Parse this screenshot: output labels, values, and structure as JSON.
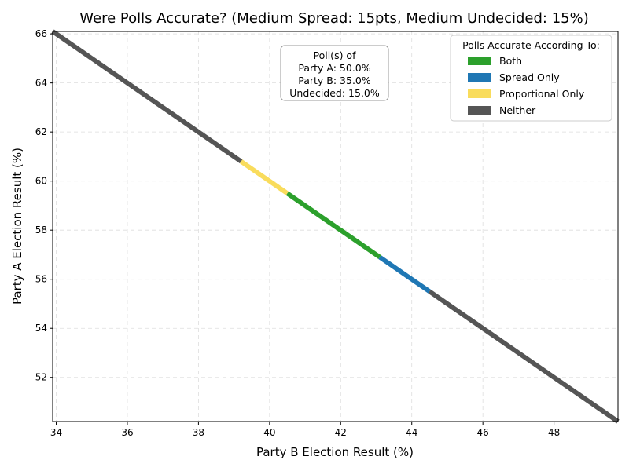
{
  "chart_data": {
    "type": "line",
    "title": "Were Polls Accurate? (Medium Spread: 15pts, Medium Undecided: 15%)",
    "xlabel": "Party B Election Result (%)",
    "ylabel": "Party A Election Result (%)",
    "xlim": [
      33.9,
      49.8
    ],
    "ylim": [
      50.2,
      66.1
    ],
    "xticks": [
      34,
      36,
      38,
      40,
      42,
      44,
      46,
      48
    ],
    "yticks": [
      52,
      54,
      56,
      58,
      60,
      62,
      64,
      66
    ],
    "grid": true,
    "legend": {
      "title": "Polls Accurate According To:",
      "placement": "top-right",
      "entries": [
        {
          "label": "Both",
          "color": "#2ca02c"
        },
        {
          "label": "Spread Only",
          "color": "#1f77b4"
        },
        {
          "label": "Proportional Only",
          "color": "#f9dc5c"
        },
        {
          "label": "Neither",
          "color": "#555555"
        }
      ]
    },
    "annotation": {
      "lines": [
        "Poll(s) of",
        "Party A: 50.0%",
        "Party B: 35.0%",
        "Undecided: 15.0%"
      ]
    },
    "series": [
      {
        "category": "Neither",
        "color": "#555555",
        "x": [
          33.9,
          39.2
        ],
        "y": [
          66.1,
          60.8
        ]
      },
      {
        "category": "Proportional Only",
        "color": "#f9dc5c",
        "x": [
          39.2,
          40.5
        ],
        "y": [
          60.8,
          59.5
        ]
      },
      {
        "category": "Both",
        "color": "#2ca02c",
        "x": [
          40.5,
          43.1
        ],
        "y": [
          59.5,
          56.9
        ]
      },
      {
        "category": "Spread Only",
        "color": "#1f77b4",
        "x": [
          43.1,
          44.5
        ],
        "y": [
          56.9,
          55.5
        ]
      },
      {
        "category": "Neither",
        "color": "#555555",
        "x": [
          44.5,
          49.8
        ],
        "y": [
          55.5,
          50.2
        ]
      }
    ]
  }
}
